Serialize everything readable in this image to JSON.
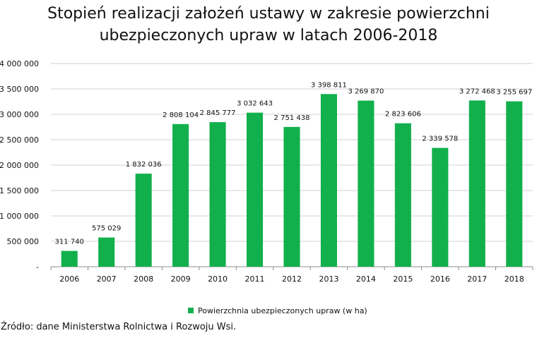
{
  "chart_data": {
    "type": "bar",
    "title_lines": [
      "Stopień realizacji założeń ustawy w zakresie powierzchni",
      "ubezpieczonych upraw w latach 2006-2018"
    ],
    "categories": [
      "2006",
      "2007",
      "2008",
      "2009",
      "2010",
      "2011",
      "2012",
      "2013",
      "2014",
      "2015",
      "2016",
      "2017",
      "2018"
    ],
    "series": [
      {
        "name": "Powierzchnia ubezpieczonych upraw (w ha)",
        "values": [
          311740,
          575029,
          1832036,
          2808104,
          2845777,
          3032643,
          2751438,
          3398811,
          3269870,
          2823606,
          2339578,
          3272468,
          3255697
        ],
        "value_labels": [
          "311 740",
          "575 029",
          "1 832 036",
          "2 808 104",
          "2 845 777",
          "3 032 643",
          "2 751 438",
          "3 398 811",
          "3 269 870",
          "2 823 606",
          "2 339 578",
          "3 272 468",
          "3 255 697"
        ],
        "color": "#12b04c"
      }
    ],
    "yticks": [
      0,
      500000,
      1000000,
      1500000,
      2000000,
      2500000,
      3000000,
      3500000,
      4000000
    ],
    "ytick_labels": [
      "-",
      "500 000",
      "1 000 000",
      "1 500 000",
      "2 000 000",
      "2 500 000",
      "3 000 000",
      "3 500 000",
      "4 000 000"
    ],
    "ylim": [
      0,
      4000000
    ],
    "grid": true,
    "legend_position": "bottom",
    "xlabel": "",
    "ylabel": ""
  },
  "source_text": "Źródło: dane Ministerstwa Rolnictwa i Rozwoju Wsi."
}
